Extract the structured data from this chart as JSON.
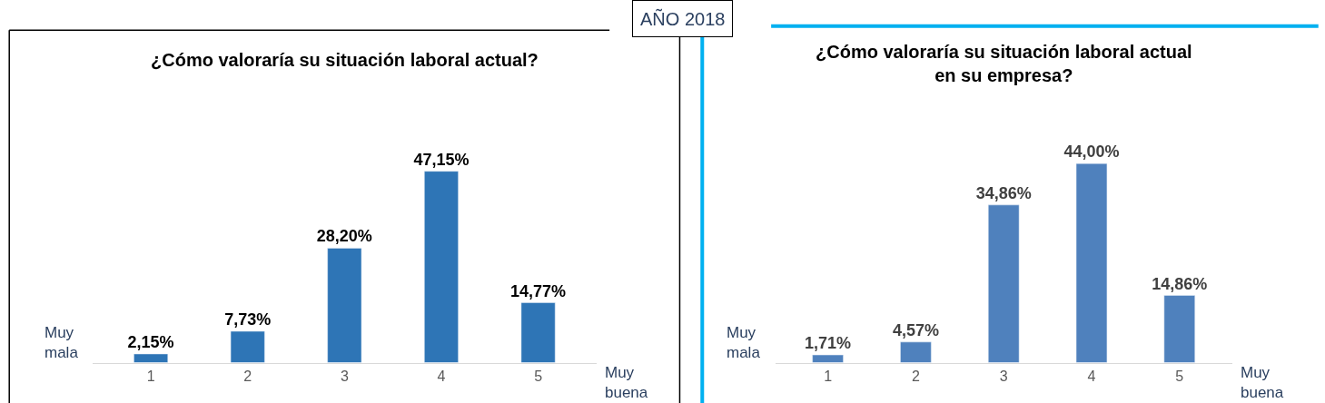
{
  "chart_data": [
    {
      "type": "bar",
      "title": "¿Cómo valoraría su situación laboral actual?",
      "categories": [
        "1",
        "2",
        "3",
        "4",
        "5"
      ],
      "values": [
        2.15,
        7.73,
        28.2,
        47.15,
        14.77
      ],
      "value_labels": [
        "2,15%",
        "7,73%",
        "28,20%",
        "47,15%",
        "14,77%"
      ],
      "color": "#2e75b6",
      "legend": false,
      "annotations": [
        "Muy\nmala",
        "Muy\nbuena",
        "AÑO 2018"
      ]
    },
    {
      "type": "bar",
      "title": "¿Cómo valoraría su situación laboral actual\nen su empresa?",
      "categories": [
        "1",
        "2",
        "3",
        "4",
        "5"
      ],
      "values": [
        1.71,
        4.57,
        34.86,
        44.0,
        14.86
      ],
      "value_labels": [
        "1,71%",
        "4,57%",
        "34,86%",
        "44,00%",
        "14,86%"
      ],
      "color": "#4f81bd",
      "legend": false,
      "annotations": [
        "Muy\nmala",
        "Muy\nbuena"
      ]
    }
  ]
}
